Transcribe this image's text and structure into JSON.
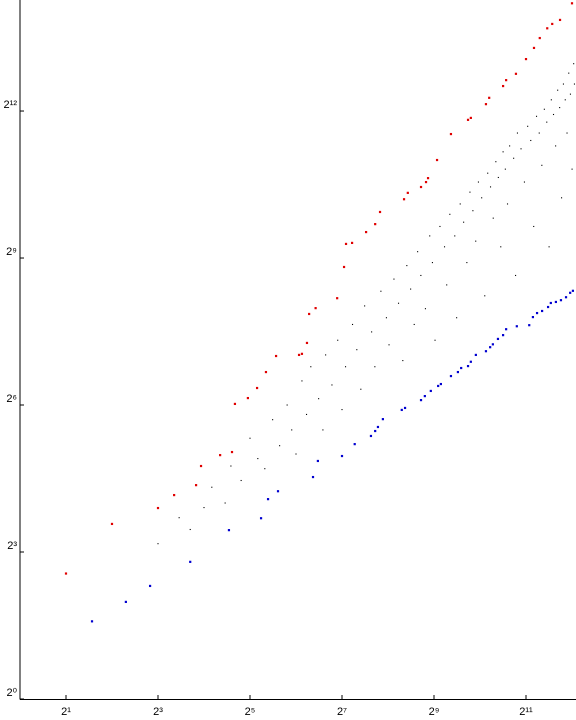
{
  "chart_data": {
    "type": "scatter",
    "log_x": true,
    "log_y": true,
    "xlim": [
      1,
      4350
    ],
    "ylim": [
      1,
      19700
    ],
    "xticks": [
      {
        "value": 2,
        "label": "2¹"
      },
      {
        "value": 8,
        "label": "2³"
      },
      {
        "value": 32,
        "label": "2⁵"
      },
      {
        "value": 128,
        "label": "2⁷"
      },
      {
        "value": 512,
        "label": "2⁹"
      },
      {
        "value": 2048,
        "label": "2¹¹"
      }
    ],
    "yticks": [
      {
        "value": 1,
        "label": "2⁰"
      },
      {
        "value": 8,
        "label": "2³"
      },
      {
        "value": 64,
        "label": "2⁶"
      },
      {
        "value": 512,
        "label": "2⁹"
      },
      {
        "value": 4096,
        "label": "2¹²"
      }
    ],
    "series": [
      {
        "color": "#000000",
        "x": [
          8,
          11,
          13,
          16,
          18,
          22,
          24,
          28,
          32,
          36,
          40,
          45,
          50,
          56,
          60,
          64,
          70,
          75,
          80,
          90,
          96,
          100,
          110,
          120,
          128,
          135,
          150,
          160,
          170,
          180,
          200,
          210,
          230,
          250,
          260,
          280,
          300,
          320,
          340,
          360,
          380,
          400,
          420,
          450,
          480,
          500,
          520,
          560,
          600,
          620,
          650,
          700,
          720,
          760,
          800,
          840,
          880,
          920,
          960,
          1000,
          1050,
          1100,
          1150,
          1200,
          1250,
          1300,
          1350,
          1400,
          1450,
          1500,
          1550,
          1600,
          1700,
          1750,
          1800,
          1900,
          2000,
          2100,
          2200,
          2300,
          2400,
          2500,
          2600,
          2700,
          2800,
          2900,
          3000,
          3100,
          3200,
          3300,
          3400,
          3500,
          3600,
          3700,
          3800,
          3900,
          4000,
          4100,
          4200,
          4250
        ],
        "values": [
          9,
          13,
          11,
          15,
          20,
          16,
          27,
          22,
          40,
          30,
          26,
          52,
          36,
          64,
          45,
          32,
          90,
          56,
          110,
          70,
          45,
          130,
          85,
          160,
          60,
          110,
          200,
          140,
          80,
          260,
          180,
          110,
          320,
          220,
          150,
          380,
          270,
          120,
          460,
          330,
          200,
          560,
          400,
          250,
          700,
          480,
          160,
          800,
          600,
          350,
          950,
          700,
          220,
          1100,
          850,
          480,
          1300,
          1000,
          650,
          1500,
          1200,
          300,
          1700,
          1400,
          900,
          2000,
          1600,
          600,
          2300,
          1800,
          1100,
          2500,
          2100,
          400,
          3000,
          2400,
          1500,
          3300,
          2700,
          800,
          3800,
          3000,
          1900,
          4200,
          3500,
          600,
          4800,
          3900,
          2500,
          5500,
          4300,
          1200,
          6000,
          4800,
          3000,
          7000,
          5200,
          1800,
          8000,
          6000
        ]
      },
      {
        "color": "#e00000",
        "x": [
          2,
          4,
          8,
          10.2,
          14.2,
          15.3,
          20.4,
          24.4,
          25.5,
          31,
          35.6,
          40.7,
          47.4,
          67,
          70,
          75.5,
          78,
          86,
          119,
          132,
          136,
          149,
          184,
          211,
          227,
          326,
          345,
          421,
          454,
          468,
          536,
          661,
          855,
          892,
          1120,
          1176,
          1450,
          1518,
          1760,
          2048,
          2310,
          2520,
          2820,
          3040,
          3420,
          4096
        ],
        "values": [
          5.9,
          11.9,
          14.9,
          17.9,
          20.6,
          27,
          31.5,
          32.9,
          65,
          70.6,
          81.4,
          102,
          128,
          130,
          132,
          154,
          232,
          252,
          290,
          451,
          625,
          634,
          739,
          827,
          982,
          1176,
          1287,
          1398,
          1499,
          1585,
          2048,
          2957,
          3615,
          3716,
          4514,
          4937,
          5831,
          6340,
          6934,
          8540,
          10000,
          11500,
          13200,
          14040,
          14860,
          18800
        ]
      },
      {
        "color": "#0000d0",
        "x": [
          2.96,
          4.93,
          7.1,
          13,
          23.3,
          37.8,
          42,
          48.8,
          82.7,
          89,
          128,
          155,
          198,
          211,
          220,
          237,
          315,
          331,
          421,
          446,
          488,
          545,
          568,
          661,
          734,
          771,
          855,
          892,
          962,
          1120,
          1193,
          1243,
          1342,
          1450,
          1518,
          1783,
          2150,
          2273,
          2419,
          2610,
          2856,
          2977,
          3213,
          3468,
          3743,
          3984,
          4153
        ],
        "values": [
          3.0,
          3.95,
          4.95,
          6.96,
          10.9,
          12.9,
          16.9,
          18.9,
          23.1,
          29,
          31.1,
          36.8,
          41.3,
          44.3,
          46.9,
          52.4,
          59.7,
          61.4,
          68.6,
          72.6,
          78.1,
          83.8,
          86.1,
          96.4,
          102,
          108,
          111,
          118,
          130,
          137,
          145,
          151,
          163,
          172,
          187,
          195,
          198,
          222,
          235,
          242,
          256,
          271,
          275,
          282,
          294,
          313,
          322
        ]
      }
    ]
  }
}
